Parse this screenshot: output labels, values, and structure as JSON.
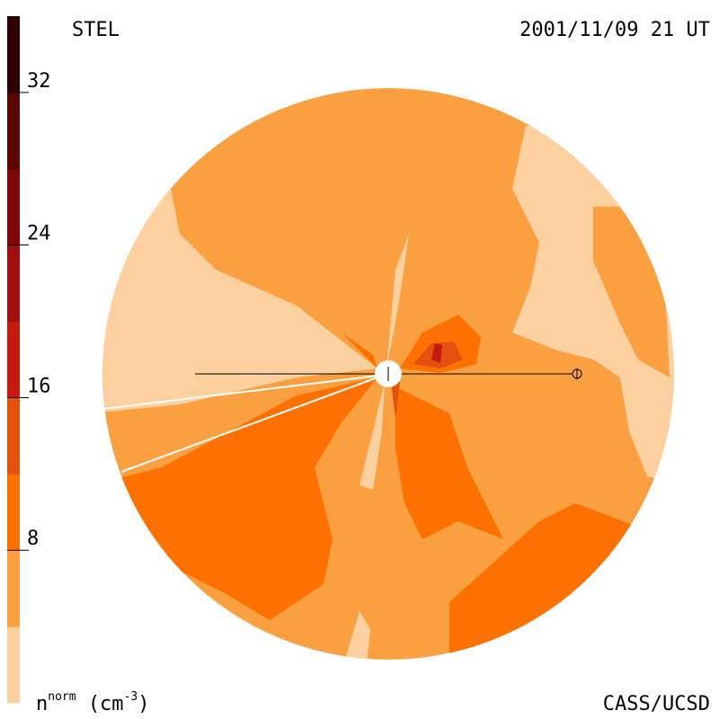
{
  "header": {
    "station": "STEL",
    "date": "2001/11/09 21 UT"
  },
  "footer": {
    "credit": "CASS/UCSD"
  },
  "colorbar": {
    "label": {
      "symbol": "n",
      "superscript": "norm",
      "unit": "(cm",
      "unit_power": "-3",
      "close": ")"
    },
    "range": [
      0,
      36
    ],
    "ticks": [
      8,
      16,
      24,
      32
    ],
    "colors": [
      "#fdd09f",
      "#fba040",
      "#fe7000",
      "#e4500e",
      "#c41a10",
      "#a01010",
      "#800808",
      "#5a0505",
      "#300000"
    ]
  }
}
